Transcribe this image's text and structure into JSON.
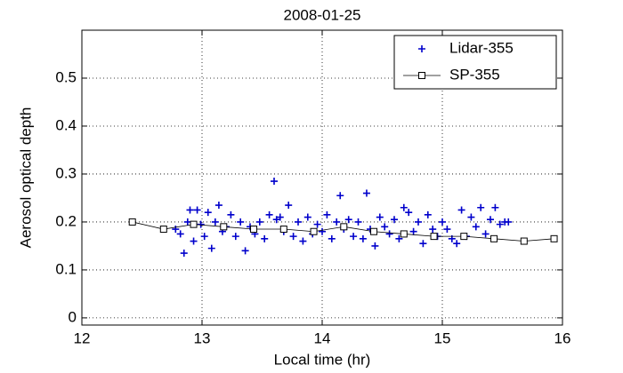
{
  "chart_data": {
    "type": "scatter",
    "title": "2008-01-25",
    "xlabel": "Local time (hr)",
    "ylabel": "Aerosol optical depth",
    "xlim": [
      12,
      16
    ],
    "xticks": [
      12,
      13,
      14,
      15,
      16
    ],
    "ylim": [
      -0.015,
      0.6
    ],
    "yticks": [
      0,
      0.1,
      0.2,
      0.3,
      0.4,
      0.5
    ],
    "grid": true,
    "legend": "upper right",
    "series": [
      {
        "name": "Lidar-355",
        "color": "#0000cc",
        "marker": "plus",
        "line": false,
        "x": [
          12.78,
          12.82,
          12.85,
          12.88,
          12.9,
          12.93,
          12.96,
          12.99,
          13.02,
          13.05,
          13.08,
          13.11,
          13.14,
          13.17,
          13.2,
          13.24,
          13.28,
          13.32,
          13.36,
          13.4,
          13.44,
          13.48,
          13.52,
          13.56,
          13.6,
          13.62,
          13.65,
          13.68,
          13.72,
          13.76,
          13.8,
          13.84,
          13.88,
          13.92,
          13.96,
          14.0,
          14.04,
          14.08,
          14.12,
          14.15,
          14.18,
          14.22,
          14.26,
          14.3,
          14.34,
          14.37,
          14.4,
          14.44,
          14.48,
          14.52,
          14.56,
          14.6,
          14.64,
          14.68,
          14.72,
          14.76,
          14.8,
          14.84,
          14.88,
          14.92,
          14.96,
          15.0,
          15.04,
          15.08,
          15.12,
          15.16,
          15.2,
          15.24,
          15.28,
          15.32,
          15.36,
          15.4,
          15.44,
          15.48,
          15.52,
          15.55
        ],
        "values": [
          0.185,
          0.175,
          0.135,
          0.2,
          0.225,
          0.16,
          0.225,
          0.195,
          0.17,
          0.22,
          0.145,
          0.2,
          0.235,
          0.18,
          0.19,
          0.215,
          0.17,
          0.2,
          0.14,
          0.19,
          0.175,
          0.2,
          0.165,
          0.215,
          0.285,
          0.205,
          0.21,
          0.18,
          0.235,
          0.17,
          0.2,
          0.16,
          0.21,
          0.175,
          0.195,
          0.18,
          0.215,
          0.165,
          0.2,
          0.255,
          0.185,
          0.205,
          0.17,
          0.2,
          0.165,
          0.26,
          0.185,
          0.15,
          0.21,
          0.19,
          0.175,
          0.205,
          0.165,
          0.23,
          0.22,
          0.18,
          0.2,
          0.155,
          0.215,
          0.185,
          0.17,
          0.2,
          0.185,
          0.165,
          0.155,
          0.225,
          0.17,
          0.21,
          0.19,
          0.23,
          0.175,
          0.205,
          0.23,
          0.195,
          0.2,
          0.2
        ]
      },
      {
        "name": "SP-355",
        "color": "#000000",
        "marker": "square",
        "line": true,
        "x": [
          12.42,
          12.68,
          12.93,
          13.18,
          13.43,
          13.68,
          13.93,
          14.18,
          14.43,
          14.68,
          14.93,
          15.18,
          15.43,
          15.68,
          15.93
        ],
        "values": [
          0.2,
          0.185,
          0.195,
          0.19,
          0.185,
          0.185,
          0.18,
          0.19,
          0.18,
          0.175,
          0.17,
          0.17,
          0.165,
          0.16,
          0.165
        ]
      }
    ]
  }
}
